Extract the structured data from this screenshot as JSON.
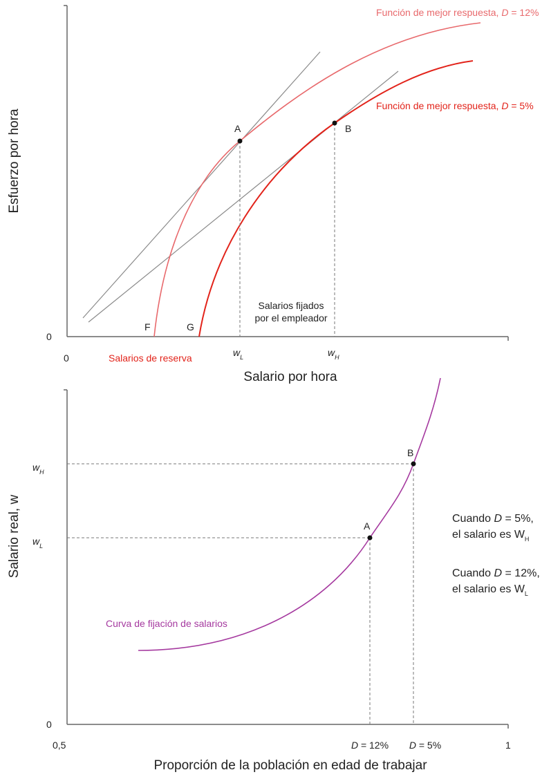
{
  "top_chart": {
    "y_axis_title": "Esfuerzo por hora",
    "x_axis_title": "Salario por hora",
    "y_origin": "0",
    "x_origin": "0",
    "curve_12_label_prefix": "Función de mejor respuesta, ",
    "curve_12_label_var": "D",
    "curve_12_label_value": " = 12%",
    "curve_5_label_prefix": "Función de mejor respuesta, ",
    "curve_5_label_var": "D",
    "curve_5_label_value": " = 5%",
    "point_a": "A",
    "point_b": "B",
    "point_f": "F",
    "point_g": "G",
    "wage_low": "w",
    "wage_low_sub": "L",
    "wage_high": "w",
    "wage_high_sub": "H",
    "employer_wages_line1": "Salarios fijados",
    "employer_wages_line2": "por el empleador",
    "reservation_wages": "Salarios de reserva",
    "colors": {
      "curve_12": "#e8696c",
      "curve_5": "#e2231a",
      "isocost": "#8a8a8a"
    }
  },
  "bottom_chart": {
    "y_axis_title": "Salario real, w",
    "x_axis_title": "Proporción de la población en edad de trabajar",
    "y_origin": "0",
    "x_min": "0,5",
    "x_max": "1",
    "tick_d12_var": "D",
    "tick_d12_value": " = 12%",
    "tick_d5_var": "D",
    "tick_d5_value": " = 5%",
    "wage_high": "w",
    "wage_high_sub": "H",
    "wage_low": "w",
    "wage_low_sub": "L",
    "point_a": "A",
    "point_b": "B",
    "curve_label": "Curva de fijación de salarios",
    "note1_prefix": "Cuando ",
    "note1_var": "D",
    "note1_value": " = 5%,",
    "note1_line2": "el salario es W",
    "note1_sub": "H",
    "note2_prefix": "Cuando ",
    "note2_var": "D",
    "note2_value": " = 12%,",
    "note2_line2": "el salario es W",
    "note2_sub": "L",
    "colors": {
      "curve": "#a5399f"
    }
  }
}
